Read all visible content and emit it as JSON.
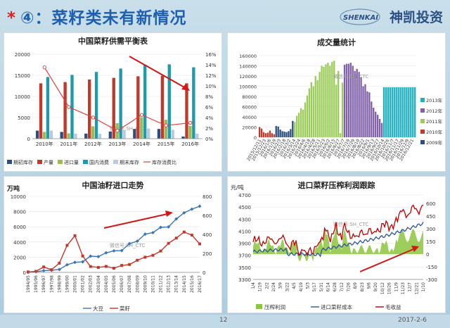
{
  "header": {
    "star": "*",
    "title": "④：菜籽类未有新情况",
    "logo_text": "神凯投资",
    "logo_mark": "SHENKAI"
  },
  "footer": {
    "page": "12",
    "date": "2017-2-6"
  },
  "colors": {
    "title": "#1f5fb0",
    "star": "#e02020"
  },
  "watermark": "微信号:SH_CTC",
  "chart_data": [
    {
      "type": "bar",
      "title": "中国菜籽供需平衡表",
      "categories": [
        "2010年",
        "2011年",
        "2012年",
        "2013年",
        "2014年",
        "2015年",
        "2016年"
      ],
      "ylim": [
        0,
        20000
      ],
      "y2lim": [
        0,
        16
      ],
      "yticks": [
        "0",
        "5000",
        "10000",
        "15000",
        "20000"
      ],
      "y2ticks": [
        "0%",
        "2%",
        "4%",
        "6%",
        "8%",
        "10%",
        "12%",
        "14%",
        "16%"
      ],
      "series": [
        {
          "name": "期初库存",
          "color": "#2c4e7e",
          "values": [
            1900,
            1600,
            1200,
            1700,
            2300,
            2300,
            500
          ]
        },
        {
          "name": "产量",
          "color": "#c0392b",
          "values": [
            13100,
            13400,
            14000,
            14400,
            14770,
            14900,
            13100
          ]
        },
        {
          "name": "进口量",
          "color": "#9bbb59",
          "values": [
            1600,
            1260,
            2930,
            3660,
            5080,
            4470,
            3000
          ]
        },
        {
          "name": "国内消费",
          "color": "#1f9aa8",
          "values": [
            14600,
            15100,
            15800,
            16600,
            17500,
            17600,
            16900
          ]
        },
        {
          "name": "期末库存",
          "color": "#b8c9e0",
          "values": [
            1900,
            1200,
            1150,
            2000,
            2400,
            2100,
            1200
          ]
        }
      ],
      "line": {
        "name": "库存消费比",
        "color": "#e0403a",
        "values": [
          13.5,
          6,
          4,
          1.5,
          4.5,
          2.5,
          3
        ]
      }
    },
    {
      "type": "bar",
      "title": "成交量统计",
      "ylim": [
        0,
        160000
      ],
      "yticks": [
        "0",
        "20000",
        "40000",
        "60000",
        "80000",
        "100000",
        "120000",
        "140000",
        "160000"
      ],
      "categories": [
        "2015/12/11",
        "2015/12/23",
        "2016/1/6",
        "2016/1/19",
        "2016/2/3",
        "2016/2/18",
        "2016/3/2",
        "2016/3/14",
        "2016/3/24",
        "2016/4/6",
        "2016/4/18",
        "2016/4/28",
        "2016/5/11",
        "2016/5/23",
        "2016/6/2",
        "2016/6/15",
        "2016/6/27",
        "2016/7/7",
        "2016/7/19",
        "2016/7/29",
        "2016/8/10",
        "2016/8/22",
        "2016/9/1",
        "2016/9/13",
        "2016/9/27",
        "2016/10/14",
        "2016/10/26",
        "2016/11/7",
        "2016/11/17",
        "2016/11/29",
        "2016/12/9",
        "2016/12/21"
      ],
      "legend": [
        "2013年",
        "2012年",
        "2011年",
        "2010年",
        "2009年"
      ],
      "colors": [
        "#1fb0c0",
        "#8060a8",
        "#9bcc5a",
        "#c0392b",
        "#2c4e7e"
      ]
    },
    {
      "type": "line",
      "title": "中国油籽进口走势",
      "ylabel": "万吨",
      "ylim": [
        0,
        10000
      ],
      "y2lim": [
        0,
        800
      ],
      "yticks": [
        "0",
        "2000",
        "4000",
        "6000",
        "8000",
        "10000"
      ],
      "y2ticks": [
        "0",
        "200",
        "400",
        "600",
        "800"
      ],
      "categories": [
        "1994/95",
        "1995/96",
        "1996/97",
        "1997/98",
        "1998/99",
        "1999/00",
        "2000/01",
        "2001/02",
        "2002/03",
        "2003/04",
        "2004/05",
        "2005/06",
        "2006/07",
        "2007/08",
        "2008/09",
        "2009/10",
        "2010/11",
        "2011/12",
        "2012/13",
        "2013/14",
        "2014/15",
        "2015/16",
        "2016/17"
      ],
      "series": [
        {
          "name": "大豆",
          "color": "#3a75b8",
          "values": [
            16,
            79,
            228,
            280,
            385,
            1010,
            1324,
            1394,
            2141,
            2074,
            2580,
            2832,
            2873,
            3782,
            4110,
            5034,
            5234,
            5926,
            5980,
            7036,
            7835,
            8323,
            8700
          ]
        },
        {
          "name": "菜籽",
          "color": "#c0392b",
          "values": [
            5,
            11,
            57,
            28,
            97,
            285,
            386,
            172,
            62,
            52,
            63,
            44,
            73,
            83,
            128,
            160,
            180,
            225,
            306,
            361,
            425,
            392,
            300
          ]
        }
      ]
    },
    {
      "type": "line",
      "title": "进口菜籽压榨利润跟踪",
      "ylabel": "元/吨",
      "ylim": [
        3300,
        4700
      ],
      "y2lim": [
        -300,
        700
      ],
      "yticks": [
        "3300",
        "3500",
        "3700",
        "3900",
        "4100",
        "4300",
        "4500",
        "4700"
      ],
      "y2ticks": [
        "-300",
        "-150",
        "0",
        "150",
        "300",
        "450",
        "600"
      ],
      "categories": [
        "1/4",
        "1/19",
        "2/2",
        "2/24",
        "3/9",
        "3/22",
        "4/5",
        "4/19",
        "5/3",
        "5/17",
        "5/31",
        "6/14",
        "6/28",
        "7/12",
        "7/26",
        "8/9",
        "8/23",
        "9/6",
        "9/20",
        "10/12",
        "10/26",
        "11/9",
        "11/23",
        "12/7",
        "12/21",
        "1/10"
      ],
      "series": [
        {
          "name": "压榨利润",
          "color": "#8cc63f"
        },
        {
          "name": "进口菜籽成本",
          "color": "#2f5597"
        },
        {
          "name": "毛收益",
          "color": "#c00000"
        }
      ]
    }
  ]
}
